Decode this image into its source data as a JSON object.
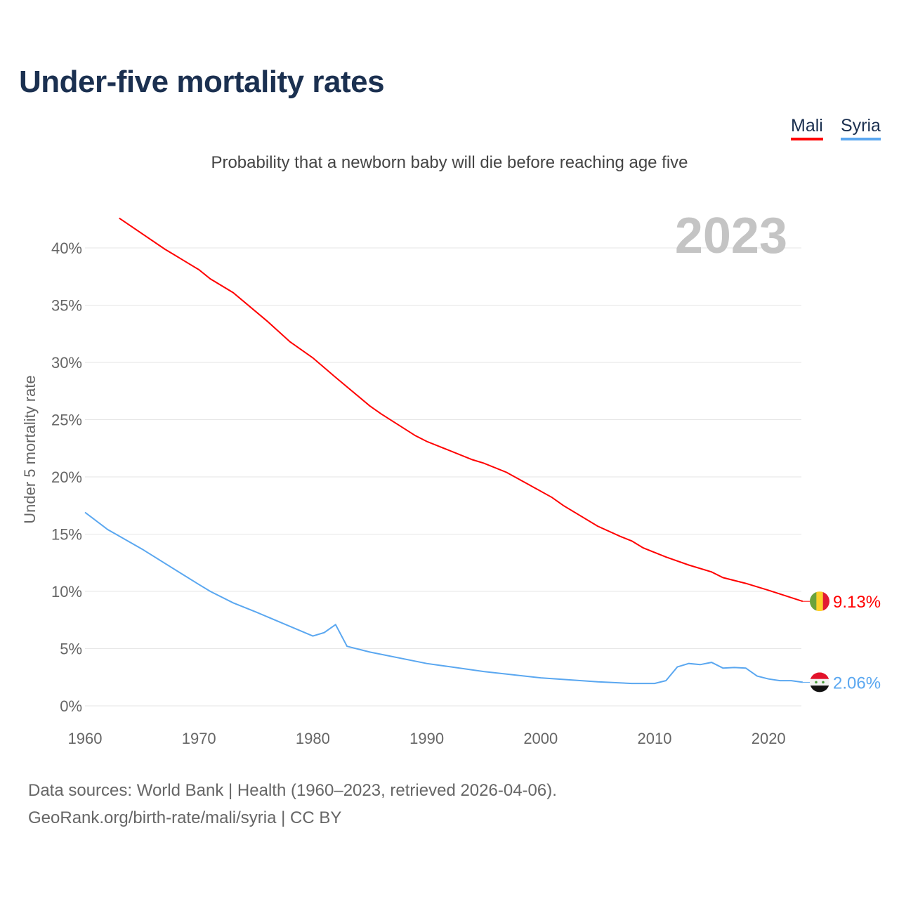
{
  "chart_data": {
    "type": "line",
    "title": "Under-five mortality rates",
    "subtitle": "Probability that a newborn baby will die before reaching age five",
    "ylabel": "Under 5 mortality rate",
    "xlabel": "",
    "year_label": "2023",
    "xlim": [
      1960,
      2023
    ],
    "ylim": [
      0,
      42
    ],
    "x_ticks": [
      1960,
      1970,
      1980,
      1990,
      2000,
      2010,
      2020
    ],
    "y_ticks": [
      {
        "v": 0,
        "label": "0%"
      },
      {
        "v": 5,
        "label": "5%"
      },
      {
        "v": 10,
        "label": "10%"
      },
      {
        "v": 15,
        "label": "15%"
      },
      {
        "v": 20,
        "label": "20%"
      },
      {
        "v": 25,
        "label": "25%"
      },
      {
        "v": 30,
        "label": "30%"
      },
      {
        "v": 35,
        "label": "35%"
      },
      {
        "v": 40,
        "label": "40%"
      }
    ],
    "grid": true,
    "legend_position": "top-right",
    "series": [
      {
        "name": "Mali",
        "color": "#ff0000",
        "end_label": "9.13%",
        "flag": "mali-flag",
        "points": [
          [
            1963,
            42.6
          ],
          [
            1967,
            39.9
          ],
          [
            1970,
            38.1
          ],
          [
            1971,
            37.3
          ],
          [
            1973,
            36.1
          ],
          [
            1976,
            33.6
          ],
          [
            1978,
            31.8
          ],
          [
            1980,
            30.4
          ],
          [
            1982,
            28.7
          ],
          [
            1985,
            26.2
          ],
          [
            1986,
            25.5
          ],
          [
            1989,
            23.6
          ],
          [
            1990,
            23.1
          ],
          [
            1994,
            21.5
          ],
          [
            1995,
            21.2
          ],
          [
            1997,
            20.4
          ],
          [
            1999,
            19.3
          ],
          [
            2001,
            18.2
          ],
          [
            2002,
            17.5
          ],
          [
            2005,
            15.7
          ],
          [
            2007,
            14.8
          ],
          [
            2008,
            14.4
          ],
          [
            2009,
            13.8
          ],
          [
            2011,
            13.0
          ],
          [
            2013,
            12.3
          ],
          [
            2015,
            11.7
          ],
          [
            2016,
            11.2
          ],
          [
            2018,
            10.7
          ],
          [
            2020,
            10.1
          ],
          [
            2023,
            9.13
          ]
        ]
      },
      {
        "name": "Syria",
        "color": "#5aa7f0",
        "end_label": "2.06%",
        "flag": "syria-flag",
        "points": [
          [
            1960,
            16.9
          ],
          [
            1962,
            15.4
          ],
          [
            1965,
            13.7
          ],
          [
            1970,
            10.6
          ],
          [
            1971,
            10.0
          ],
          [
            1973,
            9.0
          ],
          [
            1975,
            8.2
          ],
          [
            1980,
            6.1
          ],
          [
            1981,
            6.4
          ],
          [
            1982,
            7.1
          ],
          [
            1983,
            5.2
          ],
          [
            1985,
            4.7
          ],
          [
            1990,
            3.7
          ],
          [
            1995,
            3.0
          ],
          [
            2000,
            2.45
          ],
          [
            2005,
            2.1
          ],
          [
            2008,
            1.96
          ],
          [
            2010,
            1.96
          ],
          [
            2011,
            2.2
          ],
          [
            2012,
            3.4
          ],
          [
            2013,
            3.7
          ],
          [
            2014,
            3.6
          ],
          [
            2015,
            3.8
          ],
          [
            2016,
            3.3
          ],
          [
            2017,
            3.35
          ],
          [
            2018,
            3.3
          ],
          [
            2019,
            2.6
          ],
          [
            2020,
            2.35
          ],
          [
            2021,
            2.2
          ],
          [
            2022,
            2.2
          ],
          [
            2023,
            2.06
          ]
        ]
      }
    ]
  },
  "footer": {
    "line1": "Data sources: World Bank | Health (1960–2023, retrieved 2026-04-06).",
    "line2": "GeoRank.org/birth-rate/mali/syria | CC BY"
  }
}
